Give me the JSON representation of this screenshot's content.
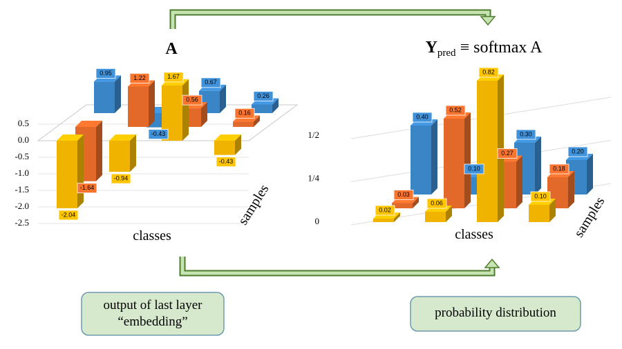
{
  "chart_data": [
    {
      "type": "bar3d",
      "title": "A",
      "xlabel": "classes",
      "zlabel": "samples",
      "ylim": [
        -2.5,
        0.5
      ],
      "yticks": [
        0.5,
        {
          "value": 0,
          "label": "0.0"
        },
        -0.5,
        {
          "value": -1,
          "label": "-1.0"
        },
        -1.5,
        {
          "value": -2,
          "label": "-2.0"
        },
        -2.5
      ],
      "series": [
        {
          "color": "#f0b400",
          "values": [
            -2.04,
            -0.94,
            1.67,
            -0.43
          ]
        },
        {
          "color": "#e2692a",
          "values": [
            -1.64,
            1.22,
            0.56,
            0.16
          ]
        },
        {
          "color": "#3a85c6",
          "values": [
            0.95,
            -0.43,
            0.67,
            0.26
          ]
        }
      ]
    },
    {
      "type": "bar3d",
      "title": "Y",
      "title_subscript": "pred",
      "title_suffix": "≡ softmax A",
      "xlabel": "classes",
      "zlabel": "samples",
      "ylim": [
        0,
        0.85
      ],
      "yticks": [
        0,
        {
          "value": 0.25,
          "label": "1/4"
        },
        {
          "value": 0.5,
          "label": "1/2"
        }
      ],
      "series": [
        {
          "color": "#f0b400",
          "values": [
            0.02,
            0.06,
            0.82,
            0.1
          ],
          "value_labels": [
            "0.02",
            "0.06",
            "0.82",
            "0.10"
          ]
        },
        {
          "color": "#e2692a",
          "values": [
            0.03,
            0.52,
            0.27,
            0.18
          ],
          "value_labels": [
            "0.03",
            "0.52",
            "0.27",
            "0.18"
          ]
        },
        {
          "color": "#3a85c6",
          "values": [
            0.4,
            0.1,
            0.3,
            0.2
          ],
          "value_labels": [
            "0.40",
            "0.10",
            "0.30",
            "0.20"
          ]
        }
      ]
    }
  ],
  "boxes": [
    {
      "lines": [
        "output of last layer",
        "“embedding”"
      ]
    },
    {
      "lines": [
        "probability distribution"
      ]
    }
  ]
}
